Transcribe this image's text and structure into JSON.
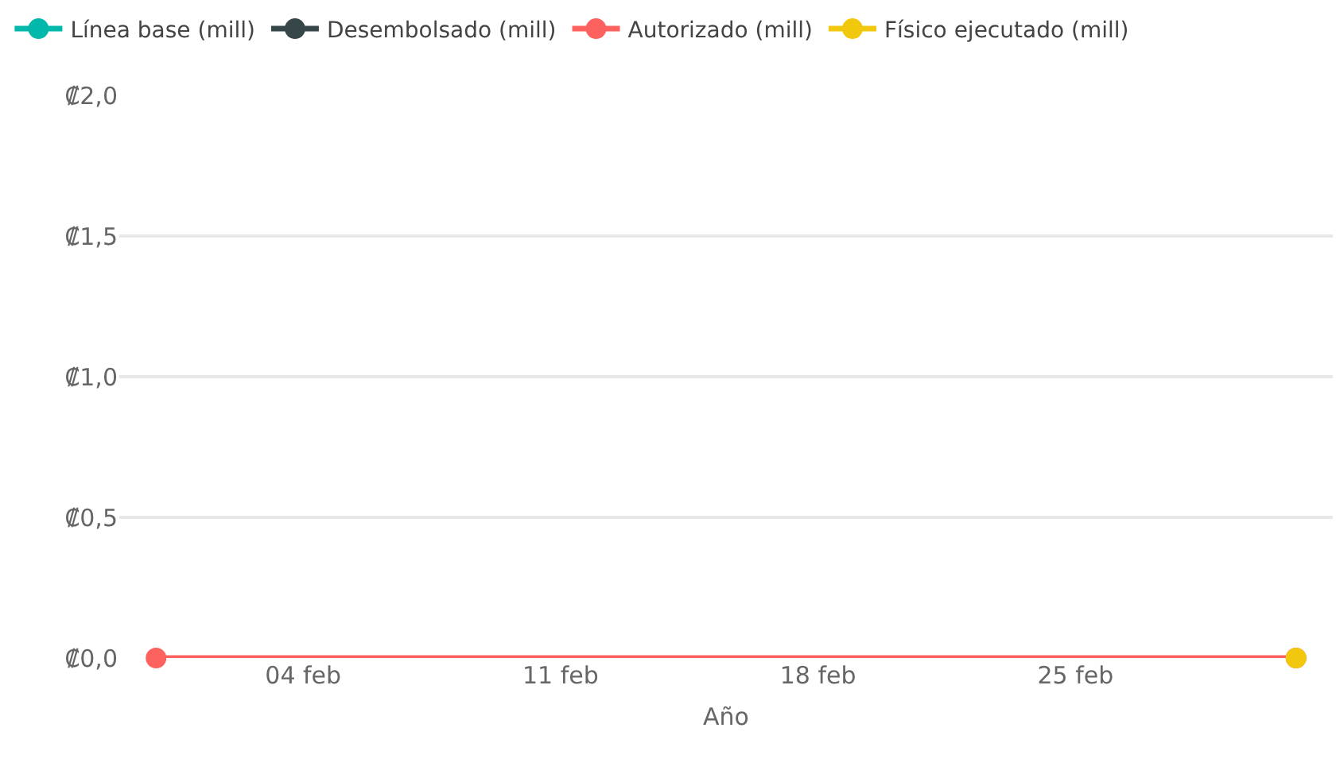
{
  "chart_data": {
    "type": "line",
    "xlabel": "Año",
    "xlim": [
      "--01-30",
      "--03-04"
    ],
    "xticks": [
      {
        "value": "--02-04",
        "label": "04 feb"
      },
      {
        "value": "--02-11",
        "label": "11 feb"
      },
      {
        "value": "--02-18",
        "label": "18 feb"
      },
      {
        "value": "--02-25",
        "label": "25 feb"
      }
    ],
    "ylim": [
      0,
      2
    ],
    "yticks": [
      {
        "value": 0,
        "label": "₡0,0"
      },
      {
        "value": 0.5,
        "label": "₡0,5"
      },
      {
        "value": 1,
        "label": "₡1,0"
      },
      {
        "value": 1.5,
        "label": "₡1,5"
      },
      {
        "value": 2,
        "label": "₡2,0"
      }
    ],
    "x": [
      "--01-31",
      "--03-03"
    ],
    "series": [
      {
        "name": "Línea base (mill)",
        "color": "#01b8aa",
        "values": [
          null,
          null
        ]
      },
      {
        "name": "Desembolsado (mill)",
        "color": "#374649",
        "values": [
          null,
          null
        ]
      },
      {
        "name": "Autorizado (mill)",
        "color": "#fd625e",
        "values": [
          0,
          0
        ]
      },
      {
        "name": "Físico ejecutado (mill)",
        "color": "#f2c80f",
        "values": [
          null,
          0
        ]
      }
    ],
    "grid": "y",
    "legend": "top left",
    "marker": "circle",
    "line_style": "solid"
  }
}
